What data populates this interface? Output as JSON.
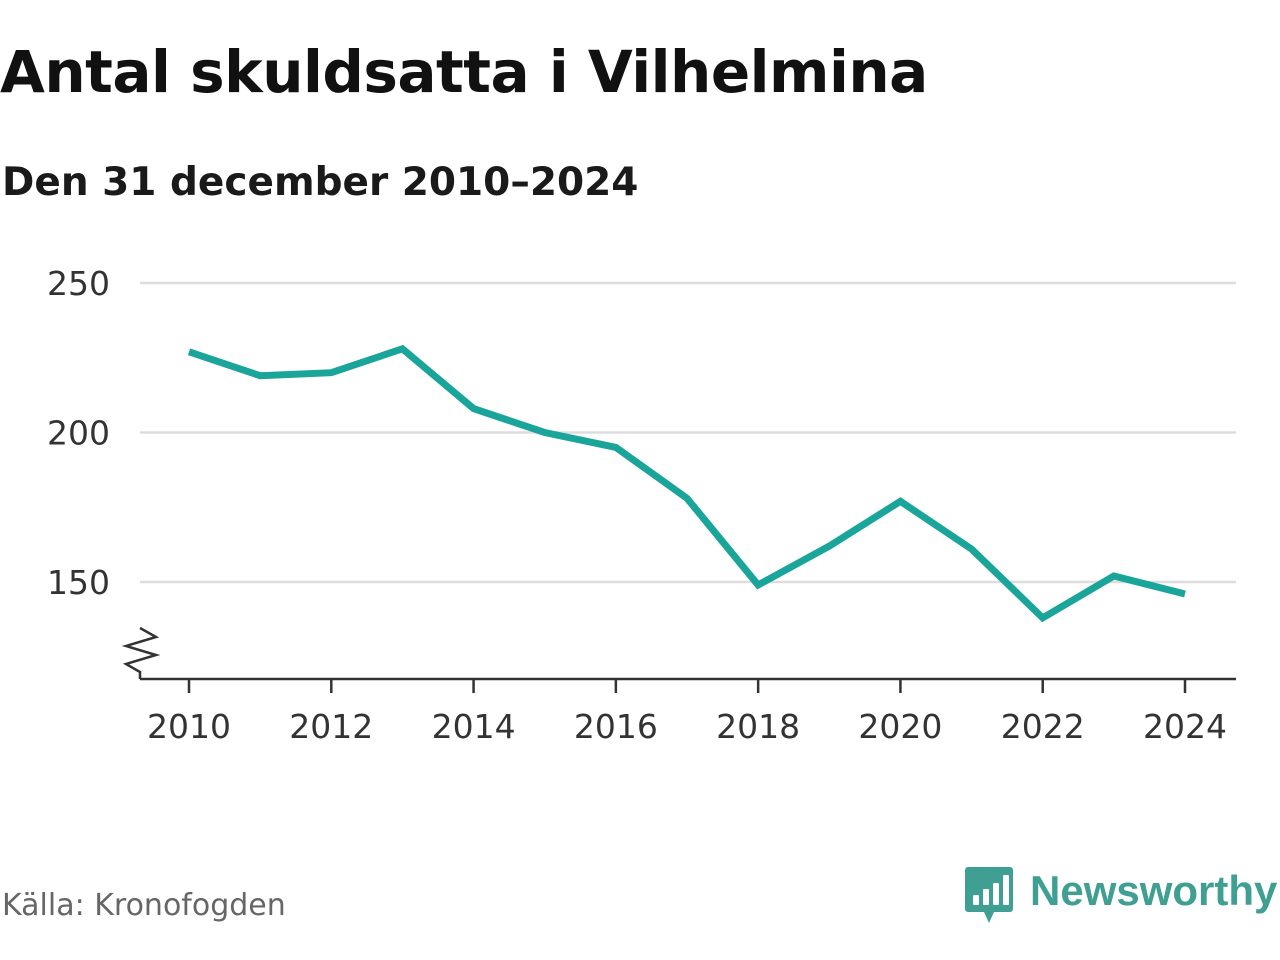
{
  "header": {
    "title": "Antal skuldsatta i Vilhelmina",
    "subtitle": "Den 31 december 2010–2024"
  },
  "footer": {
    "source": "Källa: Kronofogden",
    "brand": "Newsworthy",
    "brand_icon": "bar-chart-speech-bubble-icon"
  },
  "colors": {
    "line": "#1aa59a",
    "grid": "#dddddd",
    "axis": "#333333",
    "brand": "#3f9f92"
  },
  "chart_data": {
    "type": "line",
    "title": "Antal skuldsatta i Vilhelmina",
    "subtitle": "Den 31 december 2010–2024",
    "x": [
      2010,
      2011,
      2012,
      2013,
      2014,
      2015,
      2016,
      2017,
      2018,
      2019,
      2020,
      2021,
      2022,
      2023,
      2024
    ],
    "series": [
      {
        "values": [
          227,
          219,
          220,
          228,
          208,
          200,
          195,
          178,
          149,
          162,
          177,
          161,
          138,
          152,
          146
        ]
      }
    ],
    "x_ticks": [
      "2010",
      "2012",
      "2014",
      "2016",
      "2018",
      "2020",
      "2022",
      "2024"
    ],
    "y_ticks": [
      "150",
      "200",
      "250"
    ],
    "ylim": [
      118,
      250
    ],
    "xlim": [
      2010,
      2024
    ],
    "y_axis_break": true,
    "grid": true,
    "xlabel": "",
    "ylabel": ""
  }
}
